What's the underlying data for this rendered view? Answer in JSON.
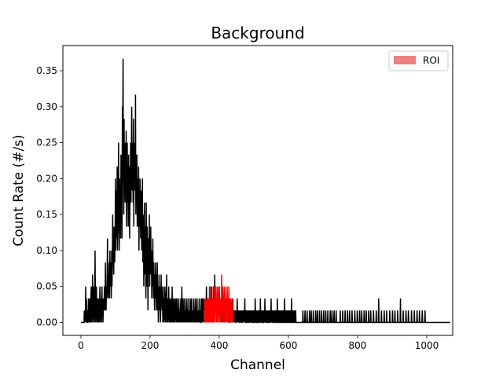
{
  "chart_data": {
    "type": "line",
    "title": "Background",
    "xlabel": "Channel",
    "ylabel": "Count Rate (#/s)",
    "xlim": [
      -52,
      1075
    ],
    "ylim": [
      -0.018,
      0.385
    ],
    "xticks": [
      0,
      200,
      400,
      600,
      800,
      1000
    ],
    "xtick_labels": [
      "0",
      "200",
      "400",
      "600",
      "800",
      "1000"
    ],
    "yticks": [
      0.0,
      0.05,
      0.1,
      0.15,
      0.2,
      0.25,
      0.3,
      0.35
    ],
    "ytick_labels": [
      "0.00",
      "0.05",
      "0.10",
      "0.15",
      "0.20",
      "0.25",
      "0.30",
      "0.35"
    ],
    "grid": false,
    "legend_position": "top-right",
    "legend": [
      {
        "label": "ROI",
        "color": "#f08080"
      }
    ],
    "quantum": 0.0167,
    "series": [
      {
        "color": "#000000",
        "note_range": [
          0,
          1023
        ],
        "values": [
          0,
          0,
          0,
          0,
          0,
          0,
          0,
          0,
          0,
          0,
          0.0167,
          0,
          0.0167,
          0,
          0.05,
          0,
          0.0333,
          0,
          0.0167,
          0,
          0,
          0.0167,
          0.0333,
          0,
          0.0167,
          0,
          0.0333,
          0.0167,
          0,
          0.0333,
          0.05,
          0,
          0.0167,
          0.0333,
          0.0667,
          0,
          0.0167,
          0.05,
          0.0333,
          0,
          0.0167,
          0.1,
          0.0333,
          0,
          0.0167,
          0.05,
          0.0167,
          0,
          0.0333,
          0.0167,
          0,
          0.0167,
          0.0333,
          0,
          0.0167,
          0.05,
          0.0333,
          0,
          0.0167,
          0.0333,
          0,
          0.05,
          0.0167,
          0.0333,
          0,
          0.0167,
          0.0333,
          0.0167,
          0.05,
          0.0333,
          0.0167,
          0.0833,
          0.0333,
          0.0167,
          0.05,
          0.0333,
          0.0667,
          0.1167,
          0.05,
          0.0333,
          0.0667,
          0.05,
          0.0833,
          0.0333,
          0.1,
          0.05,
          0.0667,
          0.0833,
          0.0333,
          0.1,
          0.05,
          0.0833,
          0.15,
          0.0833,
          0.1,
          0.0667,
          0.1333,
          0.1,
          0.0833,
          0.1167,
          0.2,
          0.1,
          0.1333,
          0.1833,
          0.1167,
          0.2167,
          0.1,
          0.1333,
          0.1667,
          0.25,
          0.15,
          0.1,
          0.2,
          0.1333,
          0.1833,
          0.1167,
          0.2333,
          0.15,
          0.2,
          0.1167,
          0.3,
          0.2333,
          0.3667,
          0.2,
          0.15,
          0.2833,
          0.1833,
          0.2167,
          0.1667,
          0.25,
          0.2,
          0.2667,
          0.1333,
          0.1833,
          0.25,
          0.1667,
          0.2,
          0.1333,
          0.2333,
          0.1833,
          0.2167,
          0.1167,
          0.1667,
          0.2,
          0.25,
          0.1667,
          0.2333,
          0.3,
          0.2167,
          0.1833,
          0.25,
          0.1667,
          0.2833,
          0.1333,
          0.2333,
          0.1833,
          0.25,
          0.2,
          0.3167,
          0.15,
          0.2167,
          0.1833,
          0.2333,
          0.1333,
          0.2,
          0.1667,
          0.1333,
          0.2167,
          0.1,
          0.1667,
          0.1333,
          0.2,
          0.15,
          0.1167,
          0.1833,
          0.1333,
          0.1,
          0.1667,
          0.2,
          0.0833,
          0.15,
          0.1333,
          0.05,
          0.1167,
          0.1667,
          0.0667,
          0.1333,
          0.1,
          0.0333,
          0.1667,
          0.0833,
          0.05,
          0.1333,
          0.1,
          0.0167,
          0.0833,
          0.1167,
          0.0667,
          0.15,
          0.05,
          0.1,
          0.0833,
          0.1333,
          0.0667,
          0.1,
          0.0333,
          0.0833,
          0.05,
          0.1167,
          0.0667,
          0.0333,
          0.0833,
          0.05,
          0.0167,
          0.0667,
          0.0333,
          0.0833,
          0.05,
          0.0167,
          0.0667,
          0.0333,
          0.0833,
          0.0167,
          0.05,
          0,
          0.0333,
          0.0667,
          0.0167,
          0.05,
          0.0333,
          0,
          0.0167,
          0.0667,
          0.0333,
          0.05,
          0.0167,
          0.0333,
          0,
          0.05,
          0.0167,
          0.0333,
          0,
          0.0167,
          0.05,
          0.0333,
          0,
          0.0167,
          0.0333,
          0.0667,
          0,
          0.0167,
          0.0333,
          0,
          0.0167,
          0.05,
          0.0167,
          0,
          0.0333,
          0.0167,
          0,
          0.0167,
          0.0333,
          0,
          0.0167,
          0.05,
          0,
          0.0167,
          0.0333,
          0,
          0.0167,
          0,
          0.0333,
          0.0167,
          0,
          0.0167,
          0.0333,
          0.0167,
          0,
          0.0333,
          0.0167,
          0,
          0.0167,
          0,
          0.0333,
          0.0167,
          0,
          0.0167,
          0,
          0.0167,
          0.0333,
          0,
          0.0167,
          0.05,
          0,
          0.0167,
          0.0333,
          0,
          0.0167,
          0,
          0.0333,
          0.0167,
          0,
          0.0167,
          0,
          0.0167,
          0.0333,
          0,
          0.0167,
          0,
          0.0167,
          0.0333,
          0,
          0.0167,
          0,
          0.0167,
          0,
          0.0333,
          0.0167,
          0,
          0.0167,
          0.0333,
          0,
          0.0167,
          0,
          0.0167,
          0,
          0.0333,
          0,
          0.0167,
          0,
          0.0167,
          0.0333,
          0,
          0.0167,
          0,
          0.0167,
          0.0333,
          0,
          0.0167,
          0,
          0.0167,
          0,
          0.0333,
          0,
          0.0167,
          0,
          0,
          0.0167,
          0.0333,
          0,
          0.0167,
          0.0333,
          0,
          0.0167,
          0,
          0.0333,
          0.0167,
          0,
          0.0167,
          0.0333,
          0,
          0.0167,
          0,
          0.05,
          0.0167,
          0,
          0.0333,
          0.0167,
          0,
          0.0333,
          0.0167,
          0,
          0.05,
          0.0167,
          0.0333,
          0,
          0.0167,
          0.05,
          0.0333,
          0,
          0.0167,
          0.0333,
          0,
          0.0167,
          0.05,
          0.0333,
          0.0167,
          0.0667,
          0,
          0.0333,
          0.05,
          0.0167,
          0.0333,
          0,
          0.0167,
          0.05,
          0.0333,
          0,
          0.0167,
          0.0333,
          0.05,
          0.0167,
          0,
          0.0333,
          0.0167,
          0,
          0.0333,
          0.0167,
          0,
          0.0167,
          0.0333,
          0,
          0.0167,
          0,
          0.0333,
          0.0167,
          0,
          0.0333,
          0.0167,
          0,
          0.0167,
          0.0333,
          0,
          0.0167,
          0,
          0.0167,
          0,
          0.0167,
          0,
          0.0167,
          0,
          0,
          0.0167,
          0,
          0.0167,
          0,
          0.0167,
          0,
          0.0167,
          0.0333,
          0,
          0.0167,
          0,
          0.0167,
          0,
          0.0167,
          0,
          0.0167,
          0,
          0,
          0.0167,
          0,
          0.0333,
          0,
          0.0167,
          0,
          0.0167,
          0,
          0.0167,
          0,
          0,
          0.0167,
          0,
          0.0167,
          0,
          0.0167,
          0,
          0,
          0.0167,
          0,
          0.0167,
          0,
          0.0167,
          0,
          0.0333,
          0,
          0.0167,
          0,
          0,
          0.0167,
          0,
          0.0167,
          0,
          0,
          0.0167,
          0,
          0.0167,
          0,
          0,
          0.0167,
          0,
          0.0167,
          0,
          0.0167,
          0,
          0,
          0.0167,
          0,
          0,
          0.0167,
          0,
          0.0167,
          0,
          0,
          0.0333,
          0,
          0.0167,
          0,
          0,
          0.0167,
          0,
          0.0167,
          0,
          0,
          0.0167,
          0,
          0,
          0.0167,
          0,
          0.0333,
          0,
          0.0167,
          0,
          0,
          0.0167,
          0,
          0,
          0.0167,
          0,
          0,
          0.0167,
          0,
          0.0333,
          0,
          0.0167,
          0,
          0,
          0.0167,
          0,
          0.0167,
          0,
          0,
          0.0167,
          0,
          0,
          0.0167,
          0,
          0.0167,
          0,
          0,
          0.0333,
          0,
          0.0167,
          0,
          0.0167,
          0,
          0,
          0.0167,
          0,
          0,
          0.0167,
          0,
          0.0167,
          0,
          0,
          0.0167,
          0,
          0,
          0.0333,
          0,
          0.0167,
          0,
          0,
          0.0167,
          0,
          0,
          0.0167,
          0,
          0.0167,
          0,
          0,
          0.0167,
          0,
          0,
          0.0167,
          0,
          0,
          0.0167,
          0,
          0.0333,
          0,
          0,
          0.0167,
          0,
          0,
          0.0167,
          0,
          0,
          0.0167,
          0,
          0,
          0.0167,
          0,
          0.0167,
          0,
          0,
          0.0167,
          0,
          0,
          0.0333,
          0,
          0,
          0.0167,
          0,
          0,
          0.0167,
          0,
          0,
          0.0167,
          0,
          0,
          0.0167,
          0,
          0,
          0,
          0,
          0,
          0,
          0,
          0,
          0,
          0,
          0,
          0,
          0,
          0,
          0,
          0,
          0,
          0,
          0,
          0,
          0.0167,
          0,
          0,
          0,
          0,
          0,
          0.0167,
          0,
          0,
          0,
          0,
          0,
          0.0167,
          0,
          0,
          0,
          0,
          0,
          0,
          0.0167,
          0,
          0,
          0,
          0,
          0.0167,
          0,
          0,
          0,
          0,
          0,
          0.0167,
          0,
          0,
          0,
          0,
          0,
          0,
          0.0167,
          0,
          0,
          0,
          0,
          0.0167,
          0,
          0,
          0,
          0,
          0,
          0.0167,
          0,
          0,
          0,
          0,
          0,
          0.0167,
          0,
          0,
          0,
          0,
          0,
          0.0167,
          0,
          0,
          0,
          0,
          0,
          0.0167,
          0,
          0,
          0,
          0,
          0,
          0.0167,
          0,
          0,
          0,
          0,
          0,
          0,
          0.0167,
          0,
          0,
          0,
          0,
          0.0167,
          0,
          0,
          0,
          0,
          0,
          0.0167,
          0,
          0,
          0,
          0,
          0,
          0.0167,
          0,
          0,
          0,
          0,
          0,
          0,
          0,
          0,
          0,
          0,
          0,
          0.0167,
          0,
          0,
          0,
          0,
          0,
          0,
          0.0167,
          0,
          0,
          0,
          0,
          0,
          0,
          0.0167,
          0,
          0,
          0,
          0,
          0,
          0,
          0.0167,
          0,
          0,
          0,
          0,
          0,
          0.0167,
          0,
          0,
          0,
          0,
          0,
          0,
          0.0167,
          0,
          0,
          0,
          0,
          0,
          0,
          0,
          0.0167,
          0,
          0,
          0,
          0,
          0,
          0,
          0.0167,
          0,
          0,
          0,
          0,
          0,
          0,
          0.0167,
          0,
          0,
          0,
          0,
          0,
          0.0167,
          0,
          0,
          0,
          0,
          0,
          0,
          0.0167,
          0,
          0,
          0,
          0,
          0,
          0.0167,
          0,
          0,
          0,
          0,
          0,
          0,
          0.0167,
          0,
          0,
          0,
          0,
          0,
          0.0167,
          0,
          0,
          0,
          0,
          0,
          0,
          0,
          0.0167,
          0,
          0,
          0,
          0,
          0,
          0,
          0,
          0.0167,
          0,
          0,
          0,
          0,
          0,
          0,
          0.0333,
          0,
          0,
          0,
          0,
          0,
          0,
          0,
          0.0167,
          0,
          0,
          0,
          0,
          0,
          0,
          0,
          0.0167,
          0,
          0,
          0,
          0,
          0,
          0,
          0.0167,
          0,
          0,
          0,
          0,
          0,
          0,
          0,
          0,
          0.0167,
          0,
          0,
          0,
          0,
          0,
          0,
          0,
          0.0167,
          0,
          0,
          0,
          0,
          0,
          0,
          0.0167,
          0,
          0,
          0,
          0,
          0,
          0,
          0,
          0.0167,
          0,
          0,
          0,
          0,
          0,
          0,
          0,
          0.0333,
          0,
          0,
          0,
          0,
          0,
          0,
          0,
          0.0167,
          0,
          0,
          0,
          0,
          0,
          0,
          0,
          0.0167,
          0,
          0,
          0,
          0,
          0,
          0,
          0.0167,
          0,
          0,
          0,
          0,
          0,
          0,
          0,
          0,
          0.0167,
          0,
          0,
          0,
          0,
          0,
          0,
          0,
          0.0167,
          0,
          0,
          0,
          0,
          0,
          0,
          0,
          0.0167,
          0,
          0,
          0,
          0,
          0,
          0,
          0.0167,
          0,
          0,
          0,
          0,
          0,
          0,
          0,
          0.0167,
          0,
          0,
          0,
          0,
          0,
          0,
          0,
          0.0167,
          0,
          0,
          0,
          0,
          0,
          0,
          0,
          0,
          0,
          0,
          0,
          0,
          0,
          0,
          0,
          0,
          0,
          0,
          0,
          0,
          0,
          0,
          0,
          0,
          0,
          0,
          0,
          0,
          0,
          0,
          0,
          0,
          0,
          0,
          0,
          0,
          0,
          0,
          0,
          0,
          0,
          0,
          0,
          0,
          0,
          0,
          0,
          0,
          0,
          0,
          0,
          0,
          0,
          0,
          0,
          0,
          0,
          0,
          0,
          0,
          0,
          0,
          0,
          0,
          0,
          0,
          0,
          0,
          0,
          0,
          0,
          0,
          0
        ]
      },
      {
        "label": "ROI",
        "color": "#ff0000",
        "x_start": 356,
        "values": [
          0.0167,
          0,
          0.0333,
          0.0167,
          0,
          0.0333,
          0,
          0.0167,
          0.0333,
          0,
          0.0167,
          0,
          0.0333,
          0.0167,
          0,
          0.0333,
          0.0167,
          0.05,
          0,
          0.0167,
          0.0333,
          0,
          0.0167,
          0.05,
          0.0167,
          0,
          0.0333,
          0.0167,
          0,
          0.0333,
          0.05,
          0.0167,
          0,
          0.0333,
          0.05,
          0.0167,
          0.0333,
          0,
          0.0167,
          0.05,
          0.0333,
          0,
          0.0167,
          0.0333,
          0.05,
          0.0167,
          0,
          0.0333,
          0.0167,
          0,
          0.0333,
          0.0667,
          0.0167,
          0.0333,
          0,
          0.05,
          0.0333,
          0.0167,
          0,
          0.0333,
          0.05,
          0.0167,
          0,
          0.0333,
          0.0167,
          0,
          0.0333,
          0.05,
          0.0167,
          0,
          0.0333,
          0.0167,
          0.05,
          0,
          0.0333,
          0.0167,
          0,
          0.0333,
          0.0167,
          0,
          0.0167,
          0.0333,
          0,
          0.0167
        ]
      }
    ]
  }
}
